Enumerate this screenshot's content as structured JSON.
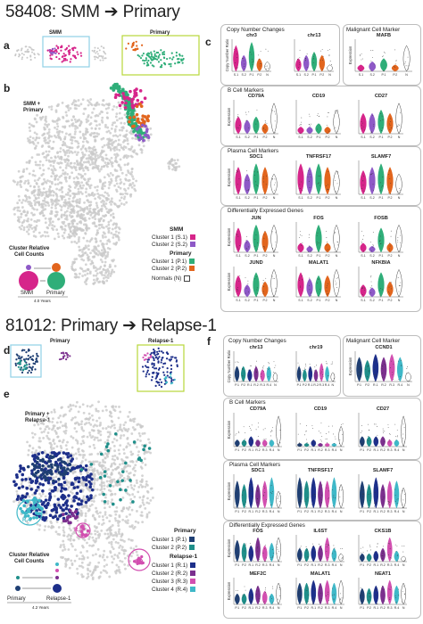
{
  "top": {
    "title": "58408: SMM ➔ Primary",
    "panel_a": "a",
    "panel_b": "b",
    "panel_c": "c",
    "inset_left": "SMM",
    "inset_right": "Primary",
    "overview_label": "SMM +\nPrimary",
    "cnc_title": "Copy Number Changes",
    "cnc_genes": [
      "chr3",
      "chr13"
    ],
    "cnc_ylabel": "Copy Number Ratio",
    "mcm_title": "Malignant Cell Marker",
    "mcm_gene": "MAFB",
    "bcell_title": "B Cell Markers",
    "bcell_genes": [
      "CD79A",
      "CD19",
      "CD27"
    ],
    "plasma_title": "Plasma Cell Markers",
    "plasma_genes": [
      "SDC1",
      "TNFRSF17",
      "SLAMF7"
    ],
    "deg_title": "Differentially Expressed Genes",
    "deg_genes": [
      "JUN",
      "FOS",
      "FOSB",
      "JUND",
      "MALAT1",
      "NFKBIA"
    ],
    "ylabel": "Expression",
    "xticks": [
      "S.1",
      "S.2",
      "P.1",
      "P.2",
      "N"
    ],
    "legend": {
      "group1": "SMM",
      "c1": "Cluster 1 (S.1)",
      "c2": "Cluster 2 (S.2)",
      "group2": "Primary",
      "c3": "Cluster 1 (P.1)",
      "c4": "Cluster 2 (P.2)",
      "normals": "Normals (N)"
    },
    "counts_title": "Cluster Relative\nCell Counts",
    "counts_from": "SMM",
    "counts_to": "Primary",
    "counts_years": "4.0 Years",
    "colors": {
      "s1": "#d6258a",
      "s2": "#8e59c7",
      "p1": "#2fae79",
      "p2": "#e2651d"
    }
  },
  "bottom": {
    "title": "81012: Primary ➔ Relapse-1",
    "panel_d": "d",
    "panel_e": "e",
    "panel_f": "f",
    "inset_left": "Primary",
    "inset_right": "Relapse-1",
    "overview_label": "Primary +\nRelapse-1",
    "cnc_title": "Copy Number Changes",
    "cnc_genes": [
      "chr13",
      "chr19"
    ],
    "cnc_ylabel": "Copy Number Ratio",
    "mcm_title": "Malignant Cell Marker",
    "mcm_gene": "CCND1",
    "bcell_title": "B Cell Markers",
    "bcell_genes": [
      "CD79A",
      "CD19",
      "CD27"
    ],
    "plasma_title": "Plasma Cell Markers",
    "plasma_genes": [
      "SDC1",
      "TNFRSF17",
      "SLAMF7"
    ],
    "deg_title": "Differentially Expressed Genes",
    "deg_genes": [
      "FOS",
      "IL6ST",
      "CKS1B",
      "MEF2C",
      "MALAT1",
      "NEAT1"
    ],
    "ylabel": "Expression",
    "xticks": [
      "P.1",
      "P.2",
      "R.1",
      "R.2",
      "R.3",
      "R.4",
      "N"
    ],
    "r_labels": [
      "R.4",
      "R.3",
      "R.3"
    ],
    "legend": {
      "group1": "Primary",
      "c1": "Cluster 1 (P.1)",
      "c2": "Cluster 2 (P.2)",
      "group2": "Relapse-1",
      "c3": "Cluster 1 (R.1)",
      "c4": "Cluster 2 (R.2)",
      "c5": "Cluster 3 (R.3)",
      "c6": "Cluster 4 (R.4)"
    },
    "counts_title": "Cluster Relative\nCell Counts",
    "counts_from": "Primary",
    "counts_to": "Relapse-1",
    "counts_years": "4.2 Years",
    "colors": {
      "p1": "#1f3f73",
      "p2": "#1f8f8a",
      "r1": "#1d2f8a",
      "r2": "#7b2f8e",
      "r3": "#d24fb0",
      "r4": "#3fb8c8"
    }
  }
}
